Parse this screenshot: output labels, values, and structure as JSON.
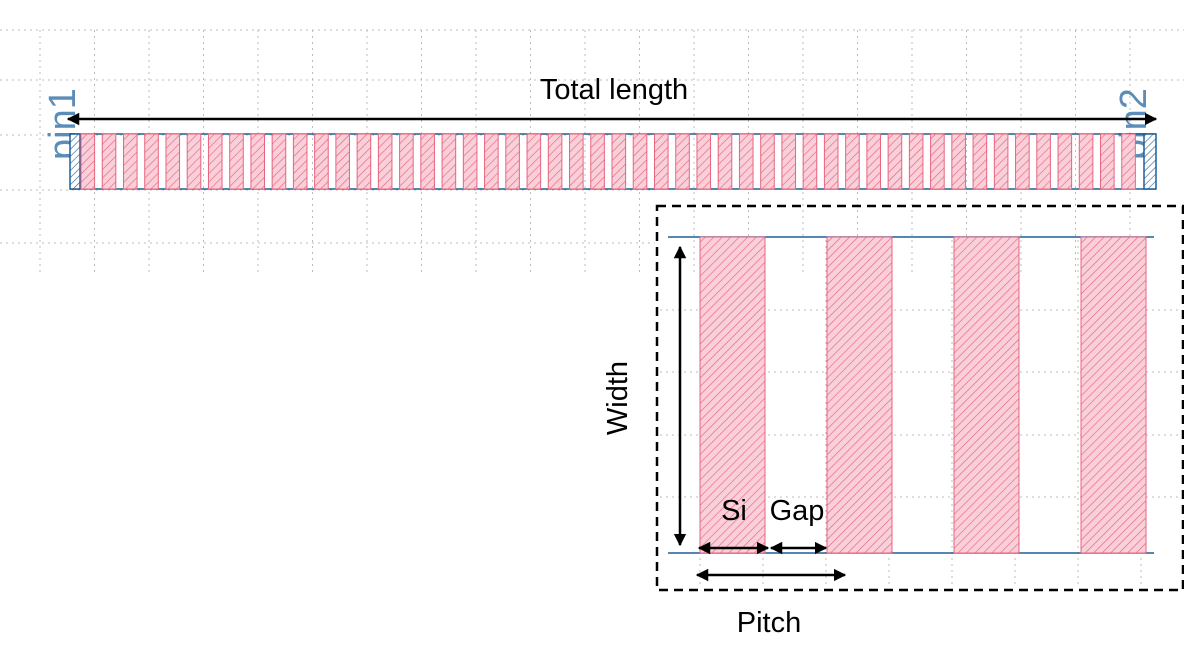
{
  "labels": {
    "total_length": "Total length",
    "pin1": "pin1",
    "pin2": "pin2",
    "width": "Width",
    "si": "Si",
    "gap": "Gap",
    "pitch": "Pitch"
  },
  "structure": {
    "main_grating_stripe_count": 50,
    "zoom_stripe_count": 4
  },
  "colors": {
    "stripe_fill": "#f8c6d1",
    "stripe_stroke": "#e8647e",
    "hatch": "#e8647e",
    "waveguide": "#1f5f99",
    "pin_text": "#5b8db8",
    "grid_dot": "#bdbdbd",
    "arrow": "#000000"
  }
}
